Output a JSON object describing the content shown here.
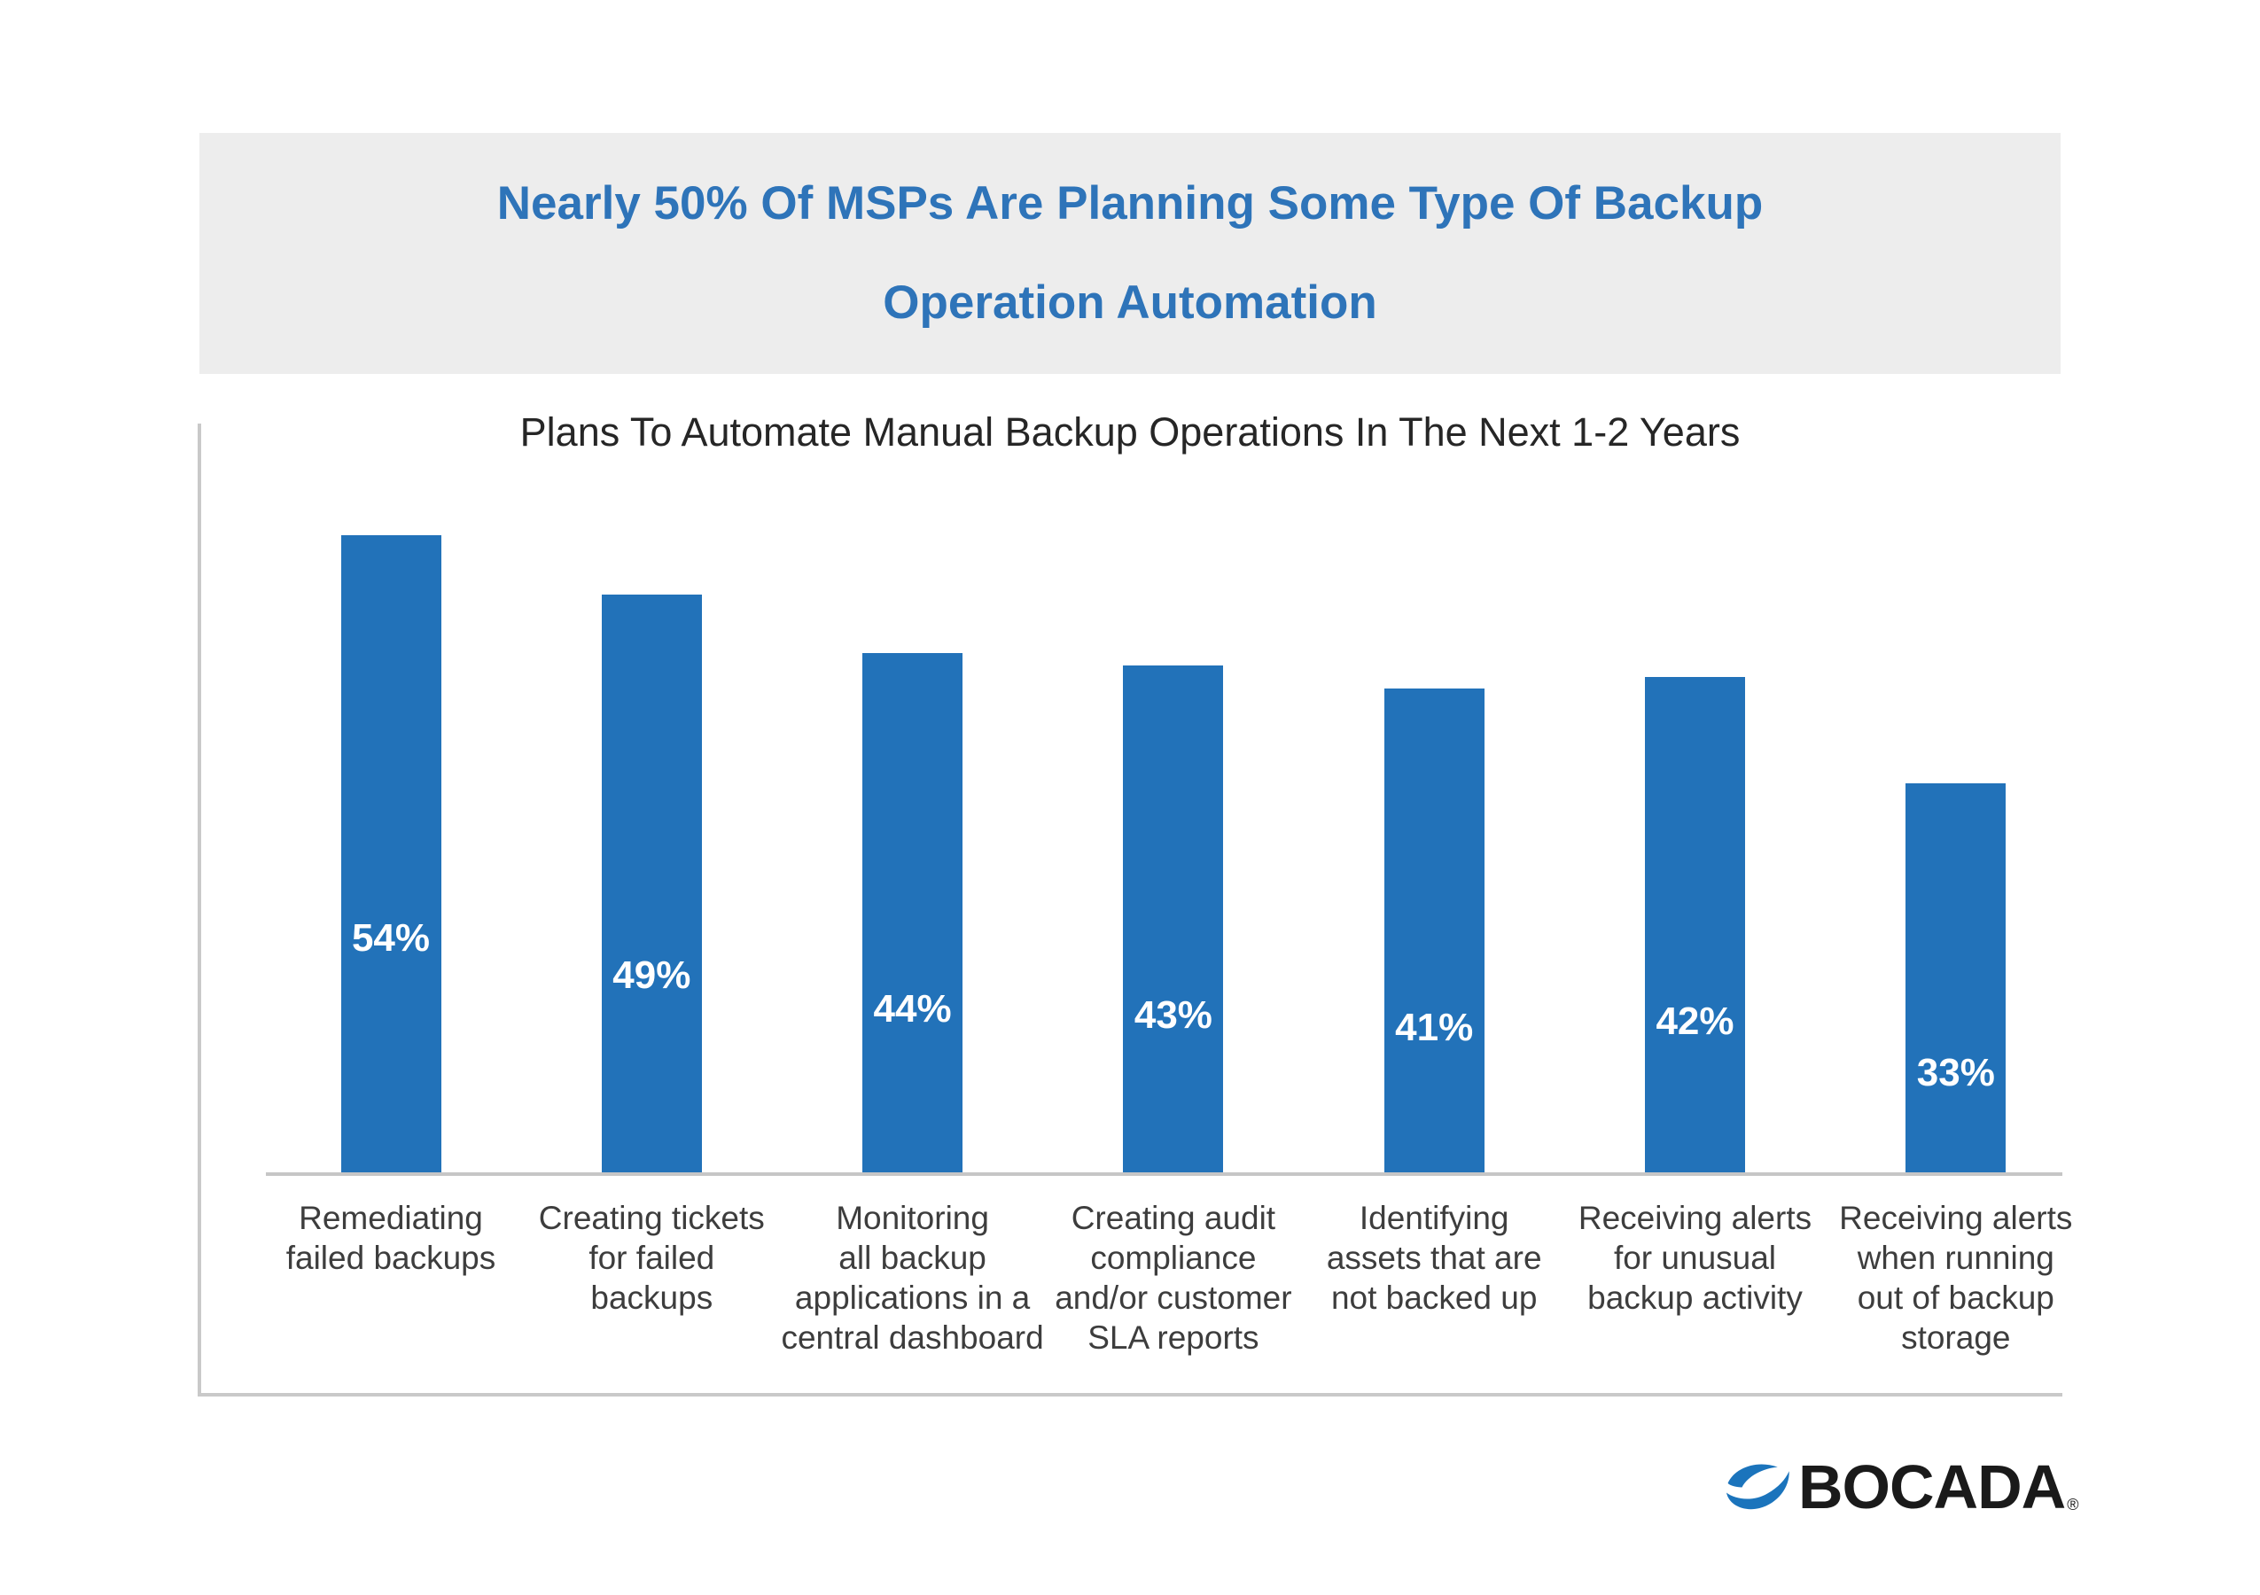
{
  "header": {
    "title_line1": "Nearly 50% Of MSPs Are Planning Some Type Of Backup",
    "title_line2": "Operation Automation",
    "title_color": "#2E74B9",
    "banner_background": "#EDEDED"
  },
  "chart_data": {
    "type": "bar",
    "title": "Plans To Automate Manual Backup Operations In The Next 1-2 Years",
    "categories": [
      "Remediating failed backups",
      "Creating tickets for failed backups",
      "Monitoring all backup applications in a central dashboard",
      "Creating audit compliance and/or customer SLA reports",
      "Identifying assets that are not backed up",
      "Receiving alerts for unusual backup activity",
      "Receiving alerts when running out of backup storage"
    ],
    "category_lines": [
      [
        "Remediating",
        "failed backups"
      ],
      [
        "Creating tickets",
        "for failed",
        "backups"
      ],
      [
        "Monitoring",
        "all backup",
        "applications in a",
        "central dashboard"
      ],
      [
        "Creating audit",
        "compliance",
        "and/or customer",
        "SLA reports"
      ],
      [
        "Identifying",
        "assets that are",
        "not backed up"
      ],
      [
        "Receiving alerts",
        "for unusual",
        "backup activity"
      ],
      [
        "Receiving alerts",
        "when running",
        "out of backup",
        "storage"
      ]
    ],
    "values": [
      54,
      49,
      44,
      43,
      41,
      42,
      33
    ],
    "value_suffix": "%",
    "value_labels_position": "inside",
    "bar_color": "#2272B9",
    "value_label_color": "#FFFFFF",
    "xlabel": "",
    "ylabel": "",
    "ylim": [
      0,
      60
    ],
    "grid": false,
    "legend": "none"
  },
  "footer": {
    "logo_text": "BOCADA",
    "registered_mark": "®",
    "logo_accent_color": "#1B74BC",
    "logo_text_color": "#1A1A1A"
  }
}
